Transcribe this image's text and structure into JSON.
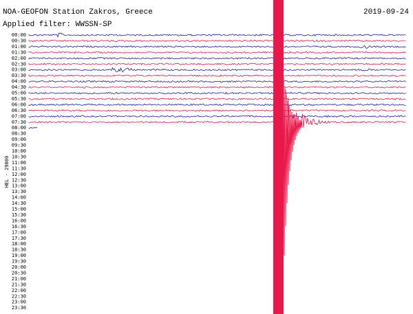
{
  "header": {
    "title": "NOA-GEOFON Station Zakros, Greece",
    "date": "2019-09-24",
    "filter": "Applied filter: WWSSN-SP"
  },
  "axis_label": "HEL - 29000",
  "rows": [
    "00:00",
    "00:30",
    "01:00",
    "01:30",
    "02:00",
    "02:30",
    "03:00",
    "03:30",
    "04:00",
    "04:30",
    "05:00",
    "05:30",
    "06:00",
    "06:30",
    "07:00",
    "07:30",
    "08:00",
    "08:30",
    "09:00",
    "09:30",
    "10:00",
    "10:30",
    "11:00",
    "11:30",
    "12:00",
    "12:30",
    "13:00",
    "13:30",
    "14:00",
    "14:30",
    "15:00",
    "15:30",
    "16:00",
    "16:30",
    "17:00",
    "17:30",
    "18:00",
    "18:30",
    "19:00",
    "19:30",
    "20:00",
    "20:30",
    "21:00",
    "21:30",
    "22:00",
    "22:30",
    "23:00",
    "23:30"
  ]
}
